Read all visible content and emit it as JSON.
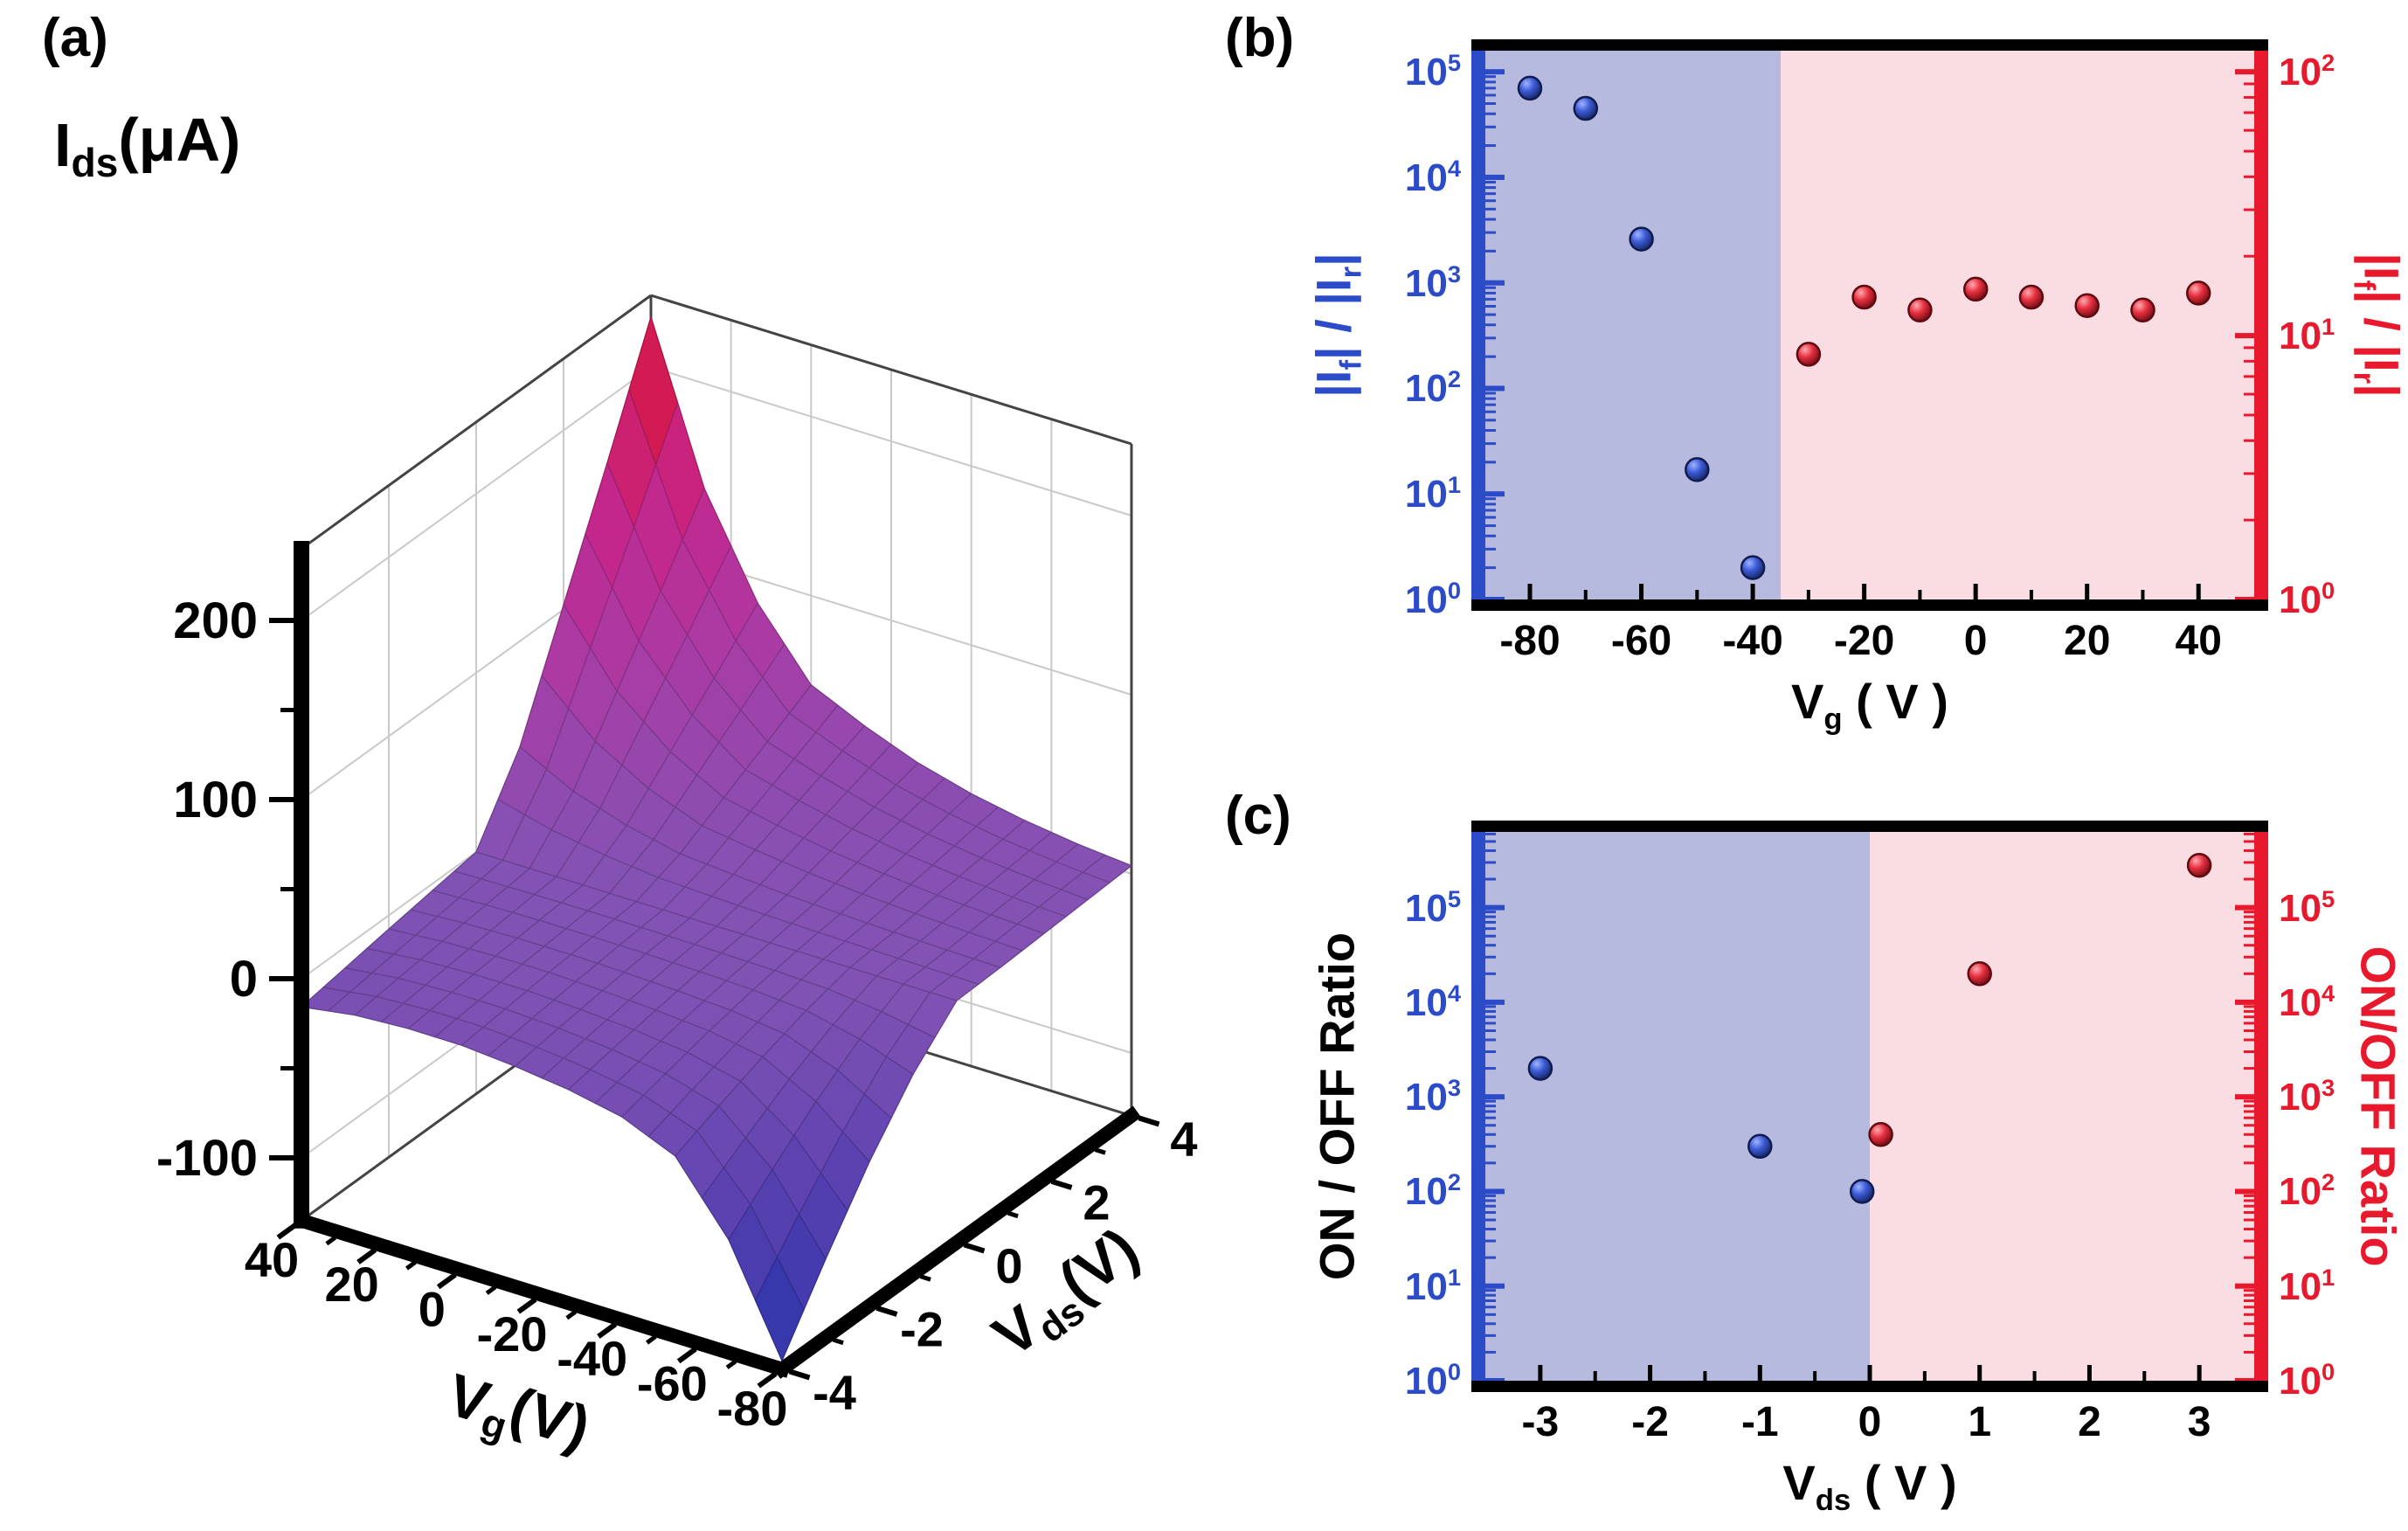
{
  "panels": {
    "a": {
      "letter": "(a)"
    },
    "b": {
      "letter": "(b)"
    },
    "c": {
      "letter": "(c)"
    }
  },
  "colors": {
    "blue_axis": "#2b4bc8",
    "red_axis": "#e8192c",
    "blue_region": "#b7badf",
    "pink_region": "#f9dde2",
    "black": "#000000"
  },
  "chart_data": [
    {
      "id": "a",
      "type": "surface",
      "title": "I~ds~(μA)",
      "xlabel": "V~g~(V)",
      "ylabel": "V~ds~(V)",
      "zlabel": "I~ds~(μA)",
      "x": [
        40,
        20,
        0,
        -20,
        -30,
        -40,
        -50,
        -60,
        -70,
        -80
      ],
      "y": [
        -4,
        -3,
        -2,
        -1,
        0,
        1,
        2,
        3,
        4
      ],
      "x_ticks": [
        40,
        20,
        0,
        -20,
        -40,
        -60,
        -80
      ],
      "y_ticks": [
        -4,
        -2,
        0,
        2,
        4
      ],
      "z_ticks": [
        200,
        100,
        0,
        -100
      ],
      "zlim": [
        -135,
        240
      ],
      "z": [
        [
          -15.7,
          -11.7,
          -7.6,
          -3.8,
          0,
          41.0,
          102.6,
          164.2,
          228.0
        ],
        [
          -11.1,
          -8.2,
          -5.3,
          -2.6,
          0,
          25.4,
          63.6,
          101.8,
          141.4
        ],
        [
          -9.4,
          -6.8,
          -4.3,
          -2.0,
          0,
          15.6,
          39.0,
          62.4,
          86.6
        ],
        [
          -9.5,
          -6.9,
          -4.2,
          -2.0,
          0,
          9.0,
          22.6,
          36.1,
          50.2
        ],
        [
          -12.0,
          -8.4,
          -5.2,
          -2.3,
          0,
          6.6,
          16.4,
          26.3,
          36.5
        ],
        [
          -15.8,
          -11.1,
          -6.8,
          -3.0,
          0,
          4.5,
          11.3,
          18.1,
          25.1
        ],
        [
          -21.8,
          -15.4,
          -9.2,
          -4.0,
          0,
          3.1,
          7.7,
          12.3,
          17.1
        ],
        [
          -34.5,
          -24.2,
          -14.5,
          -6.3,
          0,
          2.1,
          5.1,
          8.2,
          11.4
        ],
        [
          -71.9,
          -50.4,
          -30.2,
          -13.0,
          0,
          1.3,
          3.3,
          5.3,
          7.3
        ],
        [
          -130.3,
          -91.2,
          -54.7,
          -23.5,
          0,
          0.8,
          2.1,
          3.3,
          4.6
        ]
      ],
      "colormap_stops": [
        [
          -135,
          "#2433ac"
        ],
        [
          -60,
          "#5a41b0"
        ],
        [
          0,
          "#8253b4"
        ],
        [
          70,
          "#a93ca6"
        ],
        [
          140,
          "#c62589"
        ],
        [
          200,
          "#d31a49"
        ],
        [
          240,
          "#d5122c"
        ]
      ]
    },
    {
      "id": "b",
      "type": "scatter",
      "xlabel": "V~g~ ( V )",
      "xlim": [
        -88,
        50
      ],
      "x_ticks": [
        -80,
        -60,
        -40,
        -20,
        0,
        20,
        40
      ],
      "left_axis": {
        "label": "|I~f~| / |I~r~|",
        "color": "#2b4bc8",
        "label_color": "#2b4bc8",
        "exp_ticks": [
          0,
          1,
          2,
          3,
          4,
          5
        ],
        "log_range": [
          0,
          5.2
        ]
      },
      "right_axis": {
        "label": "|I~f~| / |I~r~|",
        "color": "#e8192c",
        "label_color": "#e8192c",
        "exp_ticks": [
          0,
          1,
          2
        ],
        "log_range": [
          0,
          2.08
        ]
      },
      "regions": {
        "boundary_x": -35,
        "left_color": "#b7badf",
        "right_color": "#f9dde2"
      },
      "series": [
        {
          "name": "ratio-blue-left-axis",
          "axis": "left",
          "color": "blue",
          "points": [
            [
              -80,
              70000
            ],
            [
              -70,
              45000
            ],
            [
              -60,
              2600
            ],
            [
              -50,
              17
            ],
            [
              -40,
              2
            ]
          ]
        },
        {
          "name": "ratio-red-right-axis",
          "axis": "right",
          "color": "red",
          "points": [
            [
              -30,
              8.5
            ],
            [
              -20,
              14
            ],
            [
              -10,
              12.5
            ],
            [
              0,
              15
            ],
            [
              10,
              14
            ],
            [
              20,
              13
            ],
            [
              30,
              12.5
            ],
            [
              40,
              14.5
            ]
          ]
        }
      ]
    },
    {
      "id": "c",
      "type": "scatter",
      "xlabel": "V~ds~ ( V )",
      "xlim": [
        -3.5,
        3.5
      ],
      "x_ticks": [
        -3,
        -2,
        -1,
        0,
        1,
        2,
        3
      ],
      "left_axis": {
        "label": "ON / OFF Ratio",
        "color": "#2b4bc8",
        "label_color": "#000000",
        "exp_ticks": [
          0,
          1,
          2,
          3,
          4,
          5
        ],
        "log_range": [
          0,
          5.8
        ]
      },
      "right_axis": {
        "label": "ON/OFF Ratio",
        "color": "#e8192c",
        "label_color": "#e8192c",
        "exp_ticks": [
          0,
          1,
          2,
          3,
          4,
          5
        ],
        "log_range": [
          0,
          5.8
        ]
      },
      "regions": {
        "boundary_x": 0,
        "left_color": "#b7badf",
        "right_color": "#f9dde2"
      },
      "series": [
        {
          "name": "onoff-blue-left-axis",
          "axis": "left",
          "color": "blue",
          "points": [
            [
              -3,
              2000
            ],
            [
              -1,
              300
            ],
            [
              -0.07,
              100
            ]
          ]
        },
        {
          "name": "onoff-red-right-axis",
          "axis": "right",
          "color": "red",
          "points": [
            [
              0.1,
              400
            ],
            [
              1,
              20000
            ],
            [
              3,
              280000
            ]
          ]
        }
      ]
    }
  ]
}
